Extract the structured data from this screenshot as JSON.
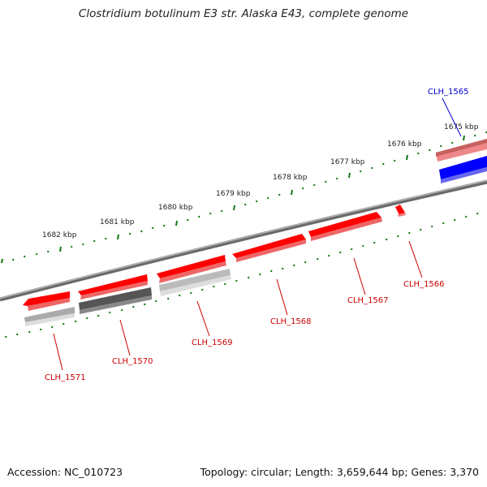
{
  "title": "Clostridium botulinum E3 str. Alaska E43, complete genome",
  "footer": {
    "accession": "Accession: NC_010723",
    "summary": "Topology: circular; Length: 3,659,644 bp; Genes: 3,370"
  },
  "ruler_labels": [
    "1675 kbp",
    "1676 kbp",
    "1677 kbp",
    "1678 kbp",
    "1679 kbp",
    "1680 kbp",
    "1681 kbp",
    "1682 kbp"
  ],
  "genes": [
    {
      "name": "CLH_1565",
      "color": "#0000cc"
    },
    {
      "name": "CLH_1566",
      "color": "#cc0000"
    },
    {
      "name": "CLH_1567",
      "color": "#cc0000"
    },
    {
      "name": "CLH_1568",
      "color": "#cc0000"
    },
    {
      "name": "CLH_1569",
      "color": "#cc0000"
    },
    {
      "name": "CLH_1570",
      "color": "#cc0000"
    },
    {
      "name": "CLH_1571",
      "color": "#cc0000"
    }
  ],
  "colors": {
    "backbone": "#8a8a8a",
    "tick": "#117711",
    "cds_forward": "#ff0000",
    "cds_reverse": "#0000ff",
    "feature_pink": "#ee8888",
    "feature_gray_dark": "#555555",
    "feature_gray_light": "#bbbbbb"
  }
}
